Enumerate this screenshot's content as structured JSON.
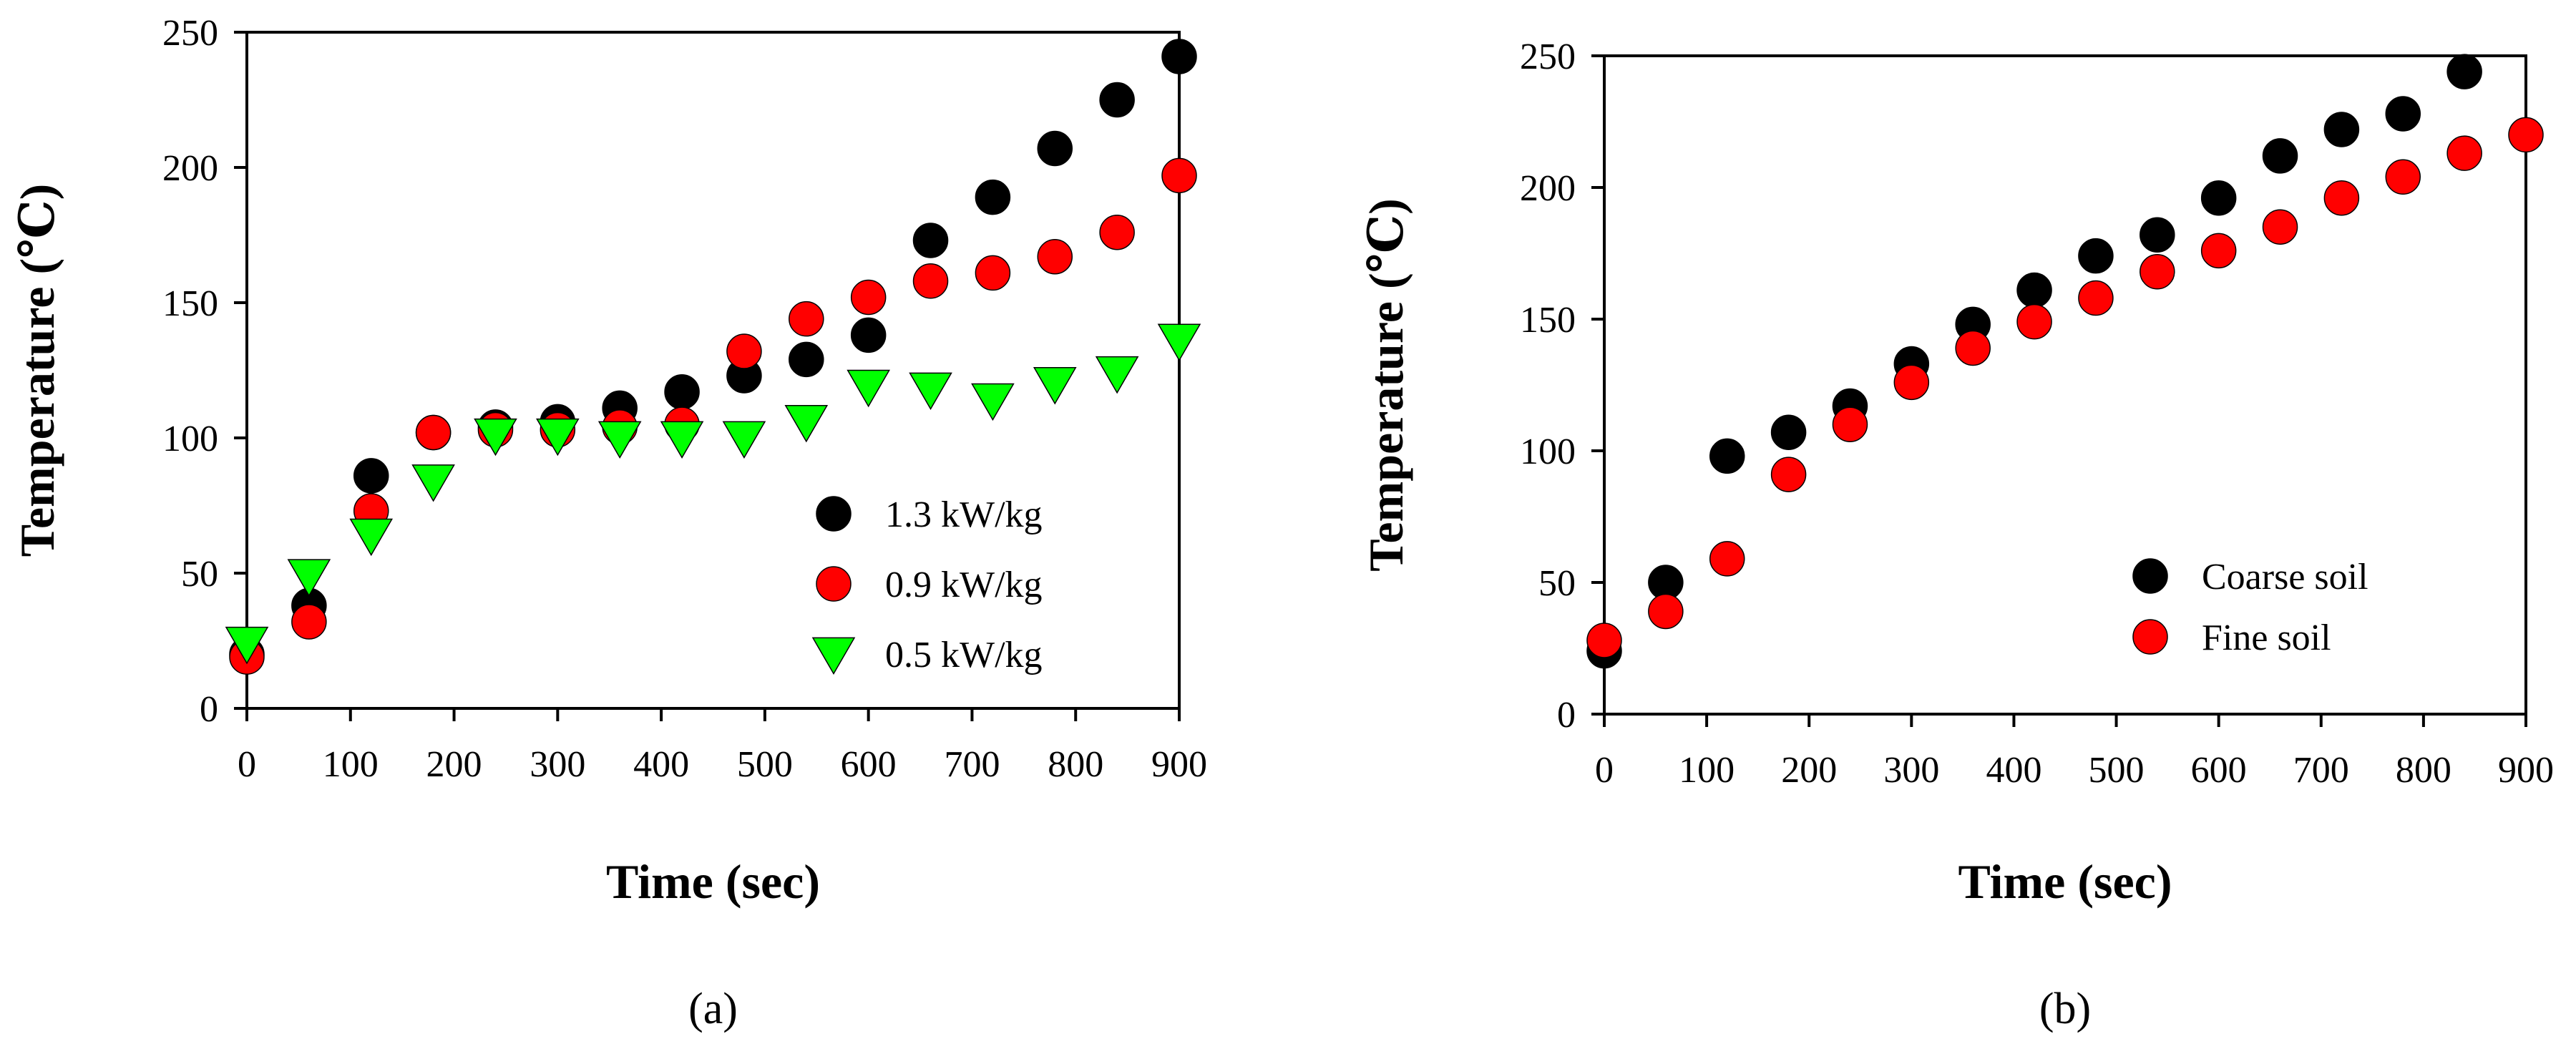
{
  "chart_data": [
    {
      "type": "scatter",
      "panel_label": "a",
      "xlabel": "Time (sec)",
      "ylabel": "Temperature (℃)",
      "xlim": [
        0,
        900
      ],
      "ylim": [
        0,
        250
      ],
      "xticks": [
        0,
        100,
        200,
        300,
        400,
        500,
        600,
        700,
        800,
        900
      ],
      "yticks": [
        0,
        50,
        100,
        150,
        200,
        250
      ],
      "legend_position": "bottom-right",
      "grid": false,
      "series": [
        {
          "name": "1.3 kW/kg",
          "marker": "circle",
          "color": "#000000",
          "x": [
            0,
            60,
            120,
            180,
            240,
            300,
            360,
            420,
            480,
            540,
            600,
            660,
            720,
            780,
            840,
            900
          ],
          "y": [
            20,
            38,
            86,
            102,
            104,
            106,
            111,
            117,
            123,
            129,
            138,
            173,
            189,
            207,
            225,
            241
          ]
        },
        {
          "name": "0.9 kW/kg",
          "marker": "circle",
          "color": "#ff0000",
          "x": [
            0,
            60,
            120,
            180,
            240,
            300,
            360,
            420,
            480,
            540,
            600,
            660,
            720,
            780,
            840,
            900
          ],
          "y": [
            19,
            32,
            73,
            102,
            103,
            103,
            104,
            105,
            132,
            144,
            152,
            158,
            161,
            167,
            176,
            197
          ]
        },
        {
          "name": "0.5 kW/kg",
          "marker": "triangle-down",
          "color": "#00ff00",
          "x": [
            0,
            60,
            120,
            180,
            240,
            300,
            360,
            420,
            480,
            540,
            600,
            660,
            720,
            780,
            840,
            900
          ],
          "y": [
            24,
            49,
            64,
            84,
            101,
            101,
            100,
            100,
            100,
            106,
            119,
            118,
            114,
            120,
            124,
            136
          ]
        }
      ]
    },
    {
      "type": "scatter",
      "panel_label": "b",
      "xlabel": "Time (sec)",
      "ylabel": "Temperature (℃)",
      "xlim": [
        0,
        900
      ],
      "ylim": [
        0,
        250
      ],
      "xticks": [
        0,
        100,
        200,
        300,
        400,
        500,
        600,
        700,
        800,
        900
      ],
      "yticks": [
        0,
        50,
        100,
        150,
        200,
        250
      ],
      "legend_position": "bottom-right",
      "grid": false,
      "series": [
        {
          "name": "Coarse soil",
          "marker": "circle",
          "color": "#000000",
          "x": [
            0,
            60,
            120,
            180,
            240,
            300,
            360,
            420,
            480,
            540,
            600,
            660,
            720,
            780,
            840
          ],
          "y": [
            24,
            50,
            98,
            107,
            117,
            133,
            148,
            161,
            174,
            182,
            196,
            212,
            222,
            228,
            244
          ]
        },
        {
          "name": "Fine soil",
          "marker": "circle",
          "color": "#ff0000",
          "x": [
            0,
            60,
            120,
            180,
            240,
            300,
            360,
            420,
            480,
            540,
            600,
            660,
            720,
            780,
            840,
            900
          ],
          "y": [
            28,
            39,
            59,
            91,
            110,
            126,
            139,
            149,
            158,
            168,
            176,
            185,
            196,
            204,
            213,
            220
          ]
        }
      ]
    }
  ]
}
